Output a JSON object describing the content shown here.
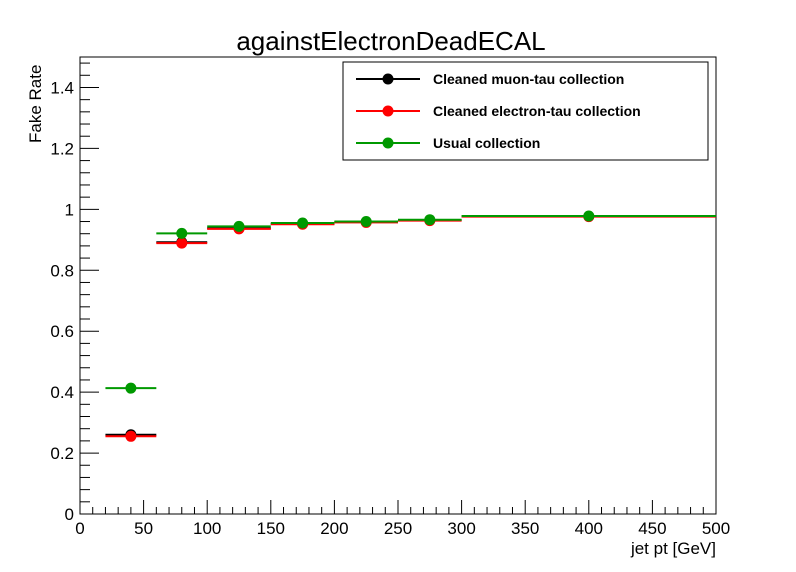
{
  "chart_data": {
    "type": "scatter",
    "title": "againstElectronDeadECAL",
    "xlabel": "jet pt [GeV]",
    "ylabel": "Fake Rate",
    "xlim": [
      0,
      500
    ],
    "ylim": [
      0,
      1.5
    ],
    "x_ticks": [
      0,
      50,
      100,
      150,
      200,
      250,
      300,
      350,
      400,
      450,
      500
    ],
    "x_tick_labels": [
      "0",
      "50",
      "100",
      "150",
      "200",
      "250",
      "300",
      "350",
      "400",
      "450",
      "500"
    ],
    "y_ticks": [
      0,
      0.2,
      0.4,
      0.6,
      0.8,
      1.0,
      1.2,
      1.4
    ],
    "y_tick_labels": [
      "0",
      "0.2",
      "0.4",
      "0.6",
      "0.8",
      "1",
      "1.2",
      "1.4"
    ],
    "grid": false,
    "legend_position": "top-right",
    "series": [
      {
        "name": "Cleaned muon-tau collection",
        "color": "#000000",
        "points": [
          {
            "x": 40,
            "xlo": 20,
            "xhi": 60,
            "y": 0.26
          },
          {
            "x": 80,
            "xlo": 60,
            "xhi": 100,
            "y": 0.892
          },
          {
            "x": 125,
            "xlo": 100,
            "xhi": 150,
            "y": 0.938
          },
          {
            "x": 175,
            "xlo": 150,
            "xhi": 200,
            "y": 0.952
          },
          {
            "x": 225,
            "xlo": 200,
            "xhi": 250,
            "y": 0.958
          },
          {
            "x": 275,
            "xlo": 250,
            "xhi": 300,
            "y": 0.964
          },
          {
            "x": 400,
            "xlo": 300,
            "xhi": 500,
            "y": 0.977
          }
        ]
      },
      {
        "name": "Cleaned electron-tau collection",
        "color": "#ff0000",
        "points": [
          {
            "x": 40,
            "xlo": 20,
            "xhi": 60,
            "y": 0.255
          },
          {
            "x": 80,
            "xlo": 60,
            "xhi": 100,
            "y": 0.889
          },
          {
            "x": 125,
            "xlo": 100,
            "xhi": 150,
            "y": 0.936
          },
          {
            "x": 175,
            "xlo": 150,
            "xhi": 200,
            "y": 0.951
          },
          {
            "x": 225,
            "xlo": 200,
            "xhi": 250,
            "y": 0.957
          },
          {
            "x": 275,
            "xlo": 250,
            "xhi": 300,
            "y": 0.963
          },
          {
            "x": 400,
            "xlo": 300,
            "xhi": 500,
            "y": 0.976
          }
        ]
      },
      {
        "name": "Usual collection",
        "color": "#009900",
        "points": [
          {
            "x": 40,
            "xlo": 20,
            "xhi": 60,
            "y": 0.413
          },
          {
            "x": 80,
            "xlo": 60,
            "xhi": 100,
            "y": 0.921
          },
          {
            "x": 125,
            "xlo": 100,
            "xhi": 150,
            "y": 0.944
          },
          {
            "x": 175,
            "xlo": 150,
            "xhi": 200,
            "y": 0.955
          },
          {
            "x": 225,
            "xlo": 200,
            "xhi": 250,
            "y": 0.96
          },
          {
            "x": 275,
            "xlo": 250,
            "xhi": 300,
            "y": 0.966
          },
          {
            "x": 400,
            "xlo": 300,
            "xhi": 500,
            "y": 0.978
          }
        ]
      }
    ]
  }
}
